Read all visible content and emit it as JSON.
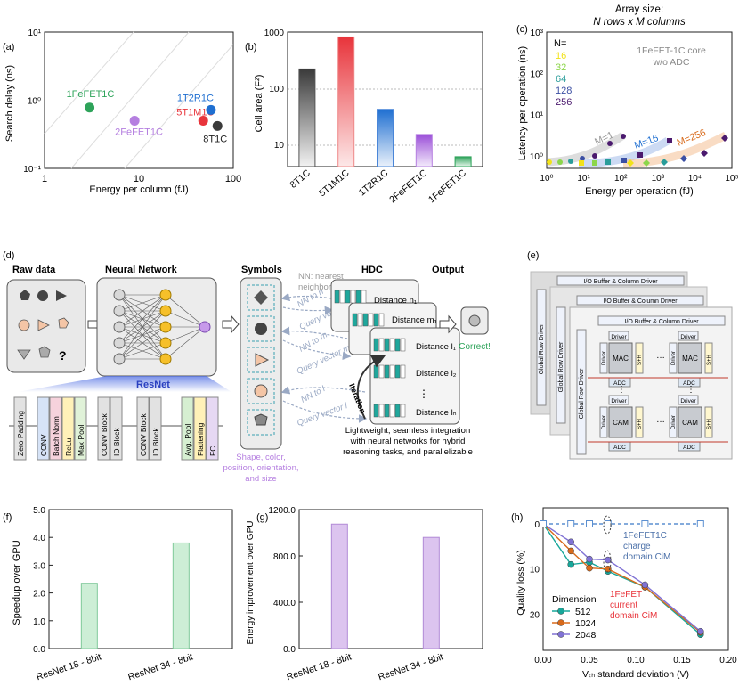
{
  "panel_labels": {
    "a": "(a)",
    "b": "(b)",
    "c": "(c)",
    "d": "(d)",
    "e": "(e)",
    "f": "(f)",
    "g": "(g)",
    "h": "(h)"
  },
  "colors": {
    "green": "#2ea35a",
    "purple": "#b57fe0",
    "red": "#e8343b",
    "blue": "#1f6fd1",
    "dark": "#3a3a3a",
    "teal": "#17a79a",
    "orange": "#d86a1b",
    "violet": "#8072d4",
    "dashed": "#5b8fd0",
    "bar_green": "#cdeed6",
    "bar_purple": "#dcc4ef"
  },
  "panel_a": {
    "ylabel": "Search delay (ns)",
    "xlabel": "Energy per column (fJ)",
    "xticks": [
      "1",
      "10",
      "100"
    ],
    "yticks": [
      "10¹",
      "10⁰",
      "10⁻¹"
    ],
    "points": [
      {
        "label": "1FeFET1C",
        "x": 3,
        "y": 0.78,
        "color": "#2ea35a"
      },
      {
        "label": "2FeFET1C",
        "x": 9,
        "y": 0.5,
        "color": "#b57fe0"
      },
      {
        "label": "5T1M1C",
        "x": 48,
        "y": 0.5,
        "color": "#e8343b"
      },
      {
        "label": "1T2R1C",
        "x": 58,
        "y": 0.72,
        "color": "#1f6fd1"
      },
      {
        "label": "8T1C",
        "x": 68,
        "y": 0.42,
        "color": "#3a3a3a"
      }
    ]
  },
  "panel_b": {
    "ylabel": "Cell area (F²)",
    "yticks": [
      "1000",
      "100",
      "10"
    ],
    "categories": [
      "8T1C",
      "5T1M1C",
      "1T2R1C",
      "2FeFET1C",
      "1FeFET1C"
    ],
    "values": [
      220,
      820,
      42,
      15,
      6
    ]
  },
  "panel_c": {
    "title_line1": "Array size:",
    "title_line2": "N rows x M columns",
    "ylabel": "Latency per operation (ns)",
    "xlabel": "Energy per operation (fJ)",
    "legend_title": "N=",
    "legend": [
      {
        "label": "16",
        "color": "#f2e21a"
      },
      {
        "label": "32",
        "color": "#8cd64a"
      },
      {
        "label": "64",
        "color": "#2a9d9a"
      },
      {
        "label": "128",
        "color": "#3b4fa3"
      },
      {
        "label": "256",
        "color": "#4b1a6e"
      }
    ],
    "note_line1": "1FeFET-1C core",
    "note_line2": "w/o ADC",
    "curve_labels": [
      "M=1",
      "M=16",
      "M=256"
    ],
    "xticks": [
      "10⁰",
      "10¹",
      "10²",
      "10³",
      "10⁴",
      "10⁵"
    ],
    "yticks": [
      "10³",
      "10²",
      "10¹",
      "10⁰"
    ]
  },
  "panel_d": {
    "raw_data": "Raw data",
    "neural_network": "Neural Network",
    "symbols": "Symbols",
    "hdc": "HDC",
    "output": "Output",
    "nn_note_line1": "NN: nearest",
    "nn_note_line2": "neighbor",
    "resnet": "ResNet",
    "layers": [
      "Zero Padding",
      "CONV",
      "Batch Norm",
      "ReLu",
      "Max Pool",
      "CONV Block",
      "ID Block",
      "CONV Block",
      "ID Block",
      "Avg. Pool",
      "Flattening",
      "FC"
    ],
    "query_labels": [
      "NN to n",
      "Query vector n",
      "NN to m",
      "Query vector m",
      "NN to l",
      "Query vector l"
    ],
    "distances": [
      "Distance n₁",
      "Distance m₁",
      "Distance l₁",
      "Distance l₂",
      "Distance lₙ"
    ],
    "iteration": "Iteration",
    "correct": "Correct!",
    "question": "?",
    "symbols_caption": [
      "Shape, color,",
      "position, orientation,",
      "and size"
    ],
    "hdc_caption": [
      "Lightweight, seamless integration",
      "with neural networks for hybrid",
      "reasoning tasks, and parallelizable"
    ]
  },
  "panel_e": {
    "io": "I/O Buffer & Column Driver",
    "global_row": "Global Row Driver",
    "driver": "Driver",
    "mac": "MAC",
    "cam": "CAM",
    "adc": "ADC",
    "sh": "S+H",
    "dots": "…"
  },
  "panel_f": {
    "ylabel": "Speedup over GPU",
    "yticks": [
      "5.0",
      "4.0",
      "3.0",
      "2.0",
      "1.0",
      "0.0"
    ],
    "categories": [
      "ResNet 18 - 8bit",
      "ResNet 34 - 8bit"
    ],
    "values": [
      2.35,
      3.8
    ],
    "ylim": [
      0,
      5
    ]
  },
  "panel_g": {
    "ylabel": "Energy improvement over GPU",
    "yticks": [
      "1200.0",
      "800.0",
      "400.0",
      "0.0"
    ],
    "categories": [
      "ResNet 18 - 8bit",
      "ResNet 34 - 8bit"
    ],
    "values": [
      1075,
      960
    ],
    "ylim": [
      0,
      1200
    ]
  },
  "panel_h": {
    "ylabel": "Quality loss (%)",
    "xlabel": "Vₜₕ standard deviation (V)",
    "xticks": [
      "0.00",
      "0.05",
      "0.10",
      "0.15",
      "0.20"
    ],
    "yticks": [
      "0",
      "10",
      "20"
    ],
    "legend_title": "Dimension",
    "charge_note": [
      "1FeFET1C",
      "charge",
      "domain CiM"
    ],
    "current_note": [
      "1FeFET",
      "current",
      "domain CiM"
    ],
    "series": [
      {
        "name": "512",
        "color": "#17a79a",
        "x": [
          0,
          0.03,
          0.05,
          0.07,
          0.11,
          0.17
        ],
        "y": [
          0,
          9,
          8.5,
          10.5,
          14,
          24.5
        ]
      },
      {
        "name": "1024",
        "color": "#d86a1b",
        "x": [
          0,
          0.03,
          0.05,
          0.07,
          0.11,
          0.17
        ],
        "y": [
          0,
          6,
          9.8,
          10,
          14,
          24
        ]
      },
      {
        "name": "2048",
        "color": "#8072d4",
        "x": [
          0,
          0.03,
          0.05,
          0.07,
          0.11,
          0.17
        ],
        "y": [
          0,
          4,
          7.8,
          8,
          13.5,
          23.8
        ]
      },
      {
        "name": "1FeFET1C charge",
        "color": "#5b8fd0",
        "x": [
          0,
          0.03,
          0.05,
          0.07,
          0.11,
          0.17
        ],
        "y": [
          0,
          0,
          0,
          0,
          0,
          0
        ]
      }
    ]
  }
}
